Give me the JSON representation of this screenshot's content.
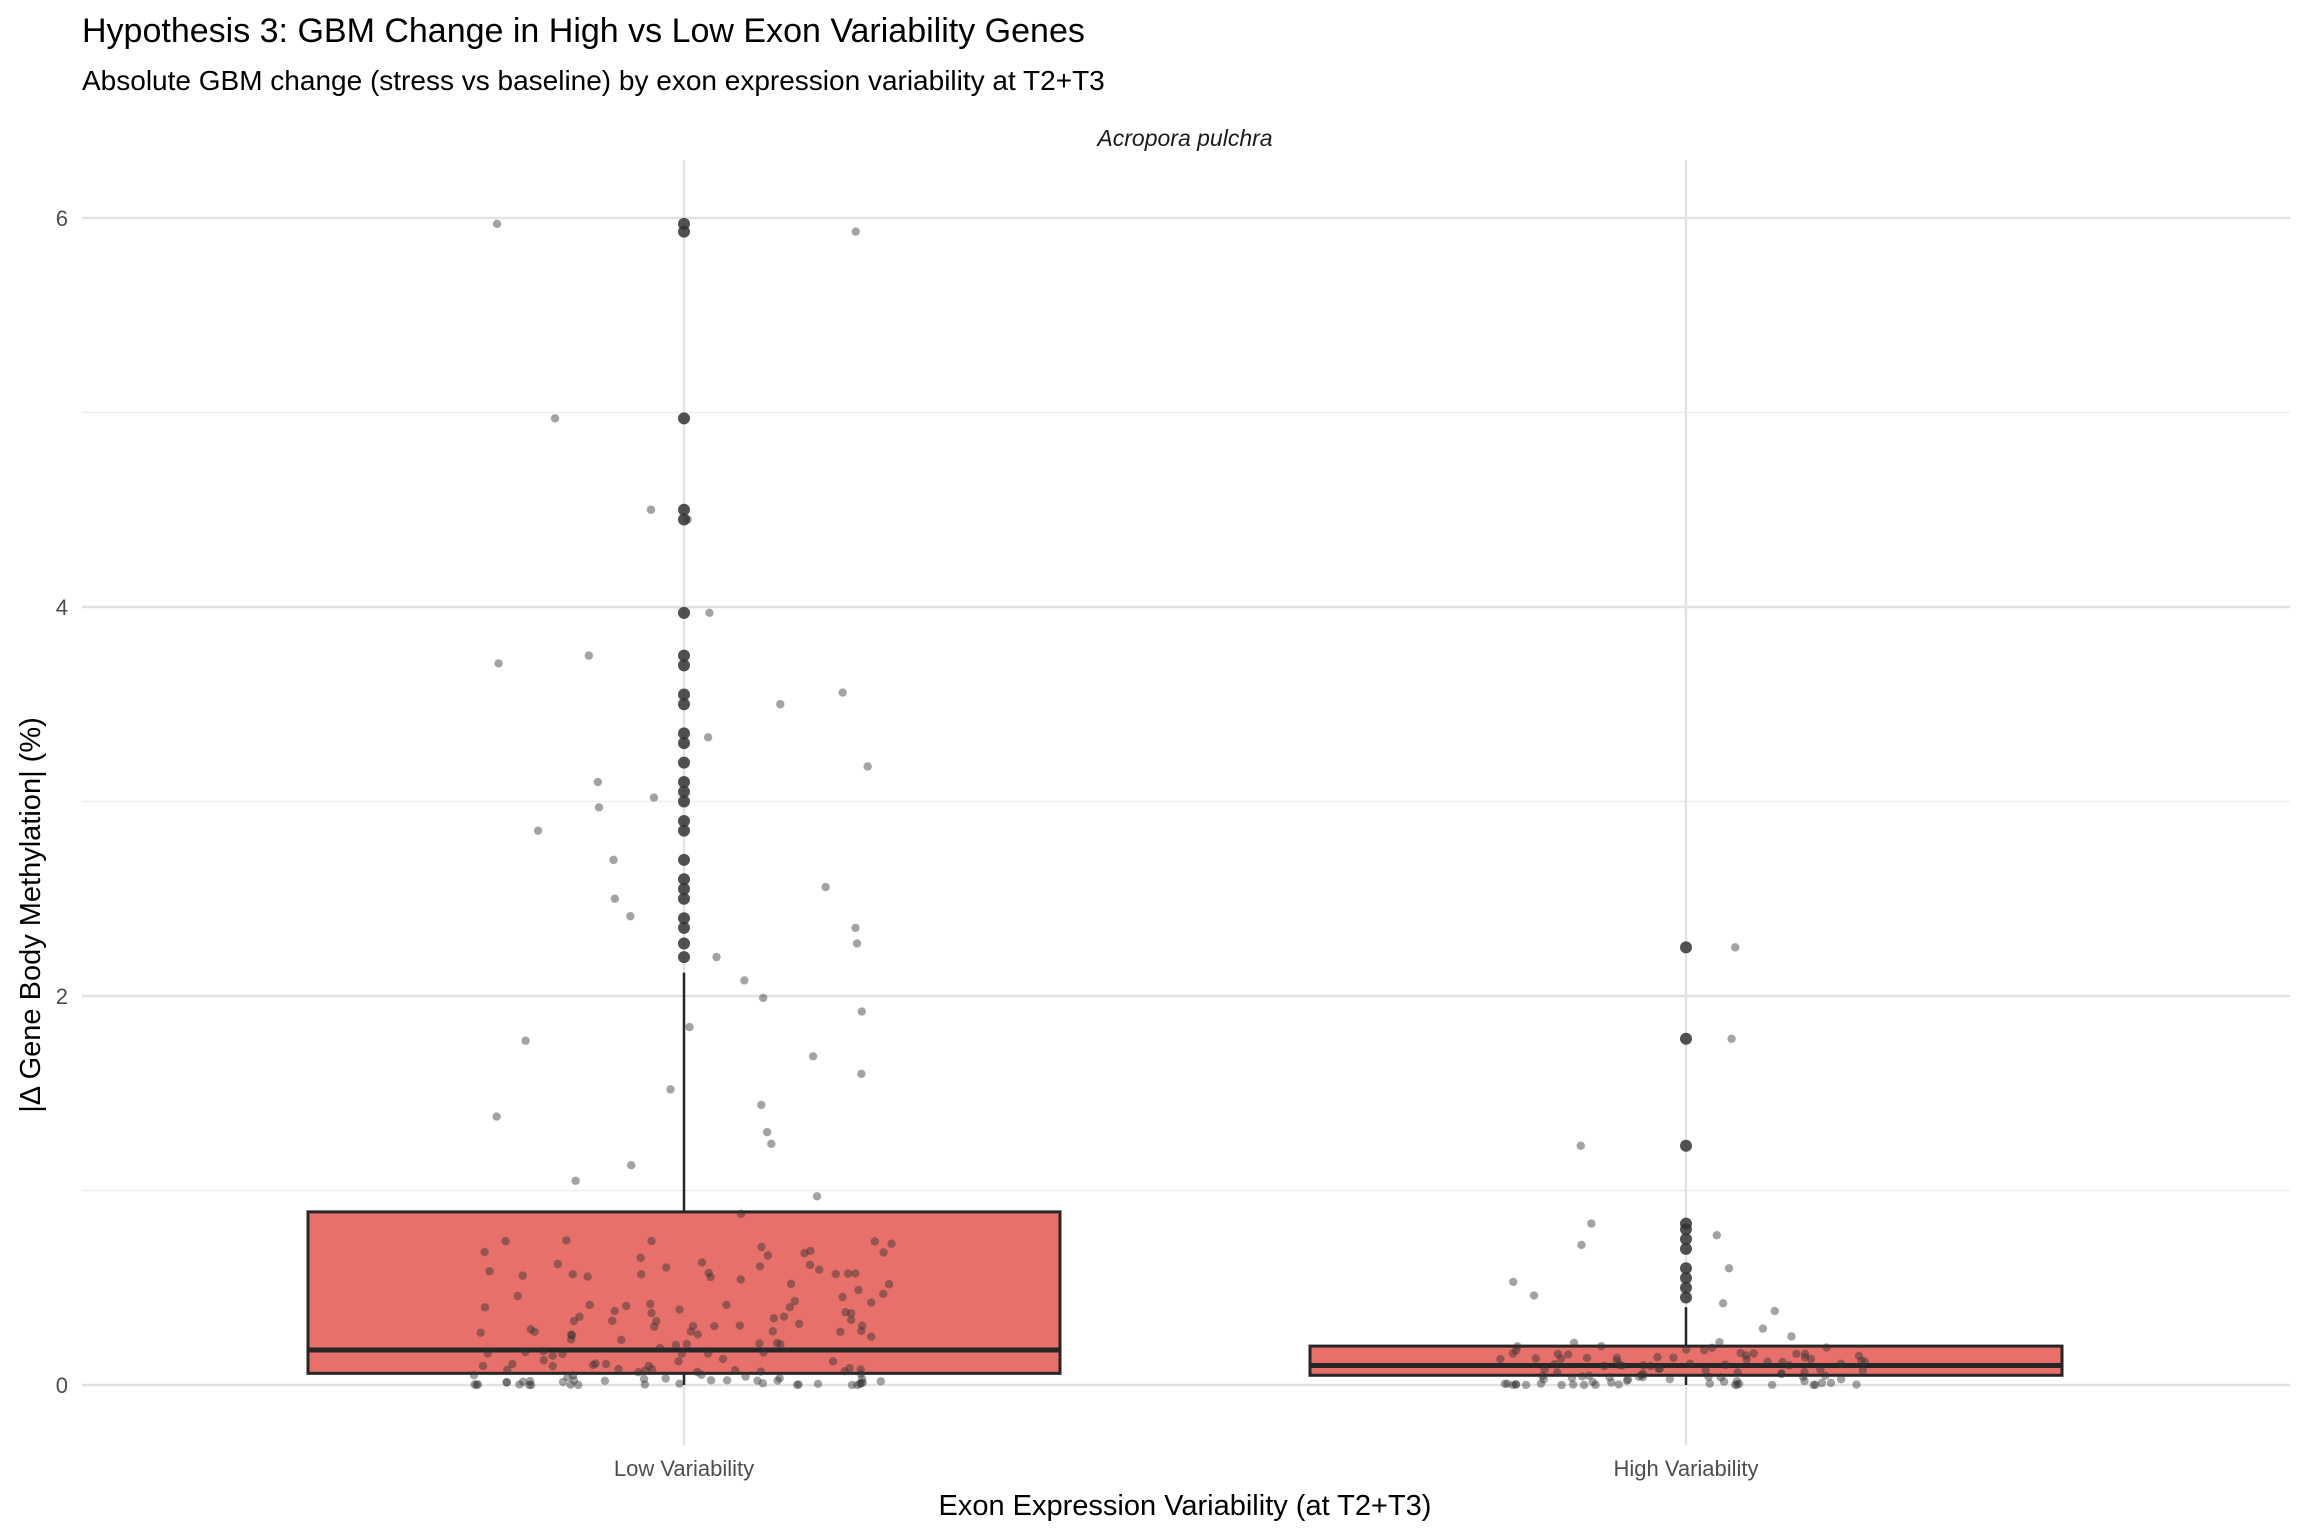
{
  "chart_data": {
    "type": "box",
    "title": "Hypothesis 3: GBM Change in High vs Low Exon Variability Genes",
    "subtitle": "Absolute GBM change (stress vs baseline) by exon expression variability at T2+T3",
    "facet_label": "Acropora pulchra",
    "xlabel": "Exon Expression Variability (at T2+T3)",
    "ylabel": "|Δ Gene Body Methylation| (%)",
    "ylim": [
      -0.25,
      6.27
    ],
    "y_ticks": [
      0,
      2,
      4,
      6
    ],
    "grid": true,
    "legend": "none",
    "colors": {
      "box_fill": "#e8706b",
      "box_line": "#262626",
      "point": "#333333",
      "grid": "#e2e2e2"
    },
    "categories": [
      "Low Variability",
      "High Variability"
    ],
    "boxes": [
      {
        "category": "Low Variability",
        "min": 0.0,
        "q1": 0.06,
        "median": 0.18,
        "q3": 0.89,
        "whisker_high": 2.12,
        "outliers": [
          2.2,
          2.27,
          2.35,
          2.4,
          2.5,
          2.55,
          2.6,
          2.7,
          2.85,
          2.9,
          3.0,
          3.05,
          3.1,
          3.2,
          3.3,
          3.35,
          3.5,
          3.55,
          3.7,
          3.75,
          3.97,
          4.45,
          4.5,
          4.97,
          5.93,
          5.97
        ]
      },
      {
        "category": "High Variability",
        "min": 0.0,
        "q1": 0.05,
        "median": 0.1,
        "q3": 0.2,
        "whisker_high": 0.4,
        "outliers": [
          0.45,
          0.5,
          0.55,
          0.6,
          0.7,
          0.75,
          0.8,
          0.83,
          1.23,
          1.78,
          2.25
        ]
      }
    ],
    "jitter_points": {
      "Low Variability": [
        0.05,
        0.08,
        0.11,
        0.16,
        0.21,
        0.26,
        0.33,
        0.4,
        0.52,
        0.63,
        0.71,
        0.88,
        0.97,
        1.05,
        1.13,
        1.24,
        1.3,
        1.38,
        1.44,
        1.52,
        1.6,
        1.69,
        1.77,
        1.84,
        1.92,
        1.99,
        2.08,
        2.2,
        2.27,
        2.35,
        2.41,
        2.5,
        2.56,
        2.7,
        2.85,
        2.97,
        3.02,
        3.1,
        3.18,
        3.33,
        3.5,
        3.56,
        3.71,
        3.75,
        3.97,
        4.45,
        4.5,
        4.97,
        5.93,
        5.97
      ],
      "High Variability": [
        0.02,
        0.04,
        0.06,
        0.08,
        0.1,
        0.12,
        0.15,
        0.18,
        0.22,
        0.25,
        0.29,
        0.38,
        0.42,
        0.46,
        0.53,
        0.6,
        0.72,
        0.77,
        0.83,
        1.23,
        1.78,
        2.25
      ]
    }
  }
}
